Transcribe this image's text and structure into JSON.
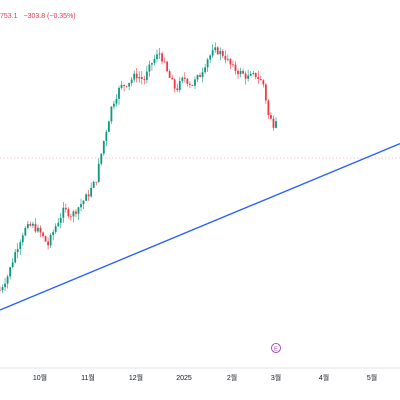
{
  "header": {
    "last_price_partial": "753.1",
    "change": "−303.8 (−0.35%)"
  },
  "colors": {
    "up": "#089981",
    "down": "#f23645",
    "trendline": "#2962ff",
    "price_line": "#f23645",
    "divider": "#e0e3eb",
    "marker": "#9c27b0"
  },
  "chart_data": {
    "type": "candlestick",
    "x_tick_labels": [
      {
        "label": "10월",
        "t": 0.1
      },
      {
        "label": "11월",
        "t": 0.22
      },
      {
        "label": "12월",
        "t": 0.34
      },
      {
        "label": "2025",
        "t": 0.46
      },
      {
        "label": "2월",
        "t": 0.58
      },
      {
        "label": "3월",
        "t": 0.69
      },
      {
        "label": "4월",
        "t": 0.81
      },
      {
        "label": "5월",
        "t": 0.93
      }
    ],
    "price_segments": [
      {
        "t": 0.0,
        "v": 0.04
      },
      {
        "t": 0.02,
        "v": 0.1
      },
      {
        "t": 0.04,
        "v": 0.2
      },
      {
        "t": 0.06,
        "v": 0.28
      },
      {
        "t": 0.08,
        "v": 0.3
      },
      {
        "t": 0.1,
        "v": 0.27
      },
      {
        "t": 0.12,
        "v": 0.22
      },
      {
        "t": 0.14,
        "v": 0.3
      },
      {
        "t": 0.16,
        "v": 0.36
      },
      {
        "t": 0.18,
        "v": 0.34
      },
      {
        "t": 0.2,
        "v": 0.38
      },
      {
        "t": 0.22,
        "v": 0.42
      },
      {
        "t": 0.24,
        "v": 0.48
      },
      {
        "t": 0.26,
        "v": 0.64
      },
      {
        "t": 0.28,
        "v": 0.78
      },
      {
        "t": 0.3,
        "v": 0.85
      },
      {
        "t": 0.32,
        "v": 0.87
      },
      {
        "t": 0.34,
        "v": 0.9
      },
      {
        "t": 0.36,
        "v": 0.88
      },
      {
        "t": 0.38,
        "v": 0.95
      },
      {
        "t": 0.4,
        "v": 0.99
      },
      {
        "t": 0.42,
        "v": 0.9
      },
      {
        "t": 0.44,
        "v": 0.84
      },
      {
        "t": 0.46,
        "v": 0.89
      },
      {
        "t": 0.48,
        "v": 0.86
      },
      {
        "t": 0.5,
        "v": 0.9
      },
      {
        "t": 0.52,
        "v": 0.97
      },
      {
        "t": 0.54,
        "v": 1.0
      },
      {
        "t": 0.56,
        "v": 0.98
      },
      {
        "t": 0.58,
        "v": 0.93
      },
      {
        "t": 0.6,
        "v": 0.91
      },
      {
        "t": 0.62,
        "v": 0.89
      },
      {
        "t": 0.64,
        "v": 0.9
      },
      {
        "t": 0.66,
        "v": 0.86
      },
      {
        "t": 0.67,
        "v": 0.74
      },
      {
        "t": 0.685,
        "v": 0.7
      },
      {
        "t": 0.69,
        "v": 0.73
      }
    ],
    "trendline": {
      "t1": 0.0,
      "v1": 0.0,
      "t2": 1.0,
      "v2": 0.64
    },
    "last_price_line": {
      "v": 0.73
    },
    "event_marker": {
      "label": "E",
      "t": 0.69
    }
  }
}
